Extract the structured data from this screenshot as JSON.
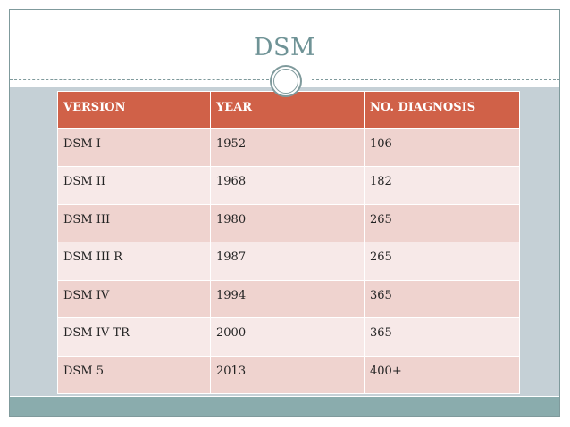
{
  "slide": {
    "title": "DSM"
  },
  "colors": {
    "title": "#6f9396",
    "header_bg": "#d06148",
    "row_odd": "#efd3cf",
    "row_even": "#f7e9e8",
    "panel": "#c5d0d6",
    "footer": "#8aacad"
  },
  "table": {
    "headers": [
      "VERSION",
      "YEAR",
      "NO. DIAGNOSIS"
    ],
    "rows": [
      [
        "DSM I",
        "1952",
        "106"
      ],
      [
        "DSM II",
        "1968",
        "182"
      ],
      [
        "DSM III",
        "1980",
        "265"
      ],
      [
        "DSM III R",
        "1987",
        "265"
      ],
      [
        "DSM IV",
        "1994",
        "365"
      ],
      [
        "DSM IV TR",
        "2000",
        "365"
      ],
      [
        "DSM 5",
        "2013",
        "400+"
      ]
    ]
  }
}
